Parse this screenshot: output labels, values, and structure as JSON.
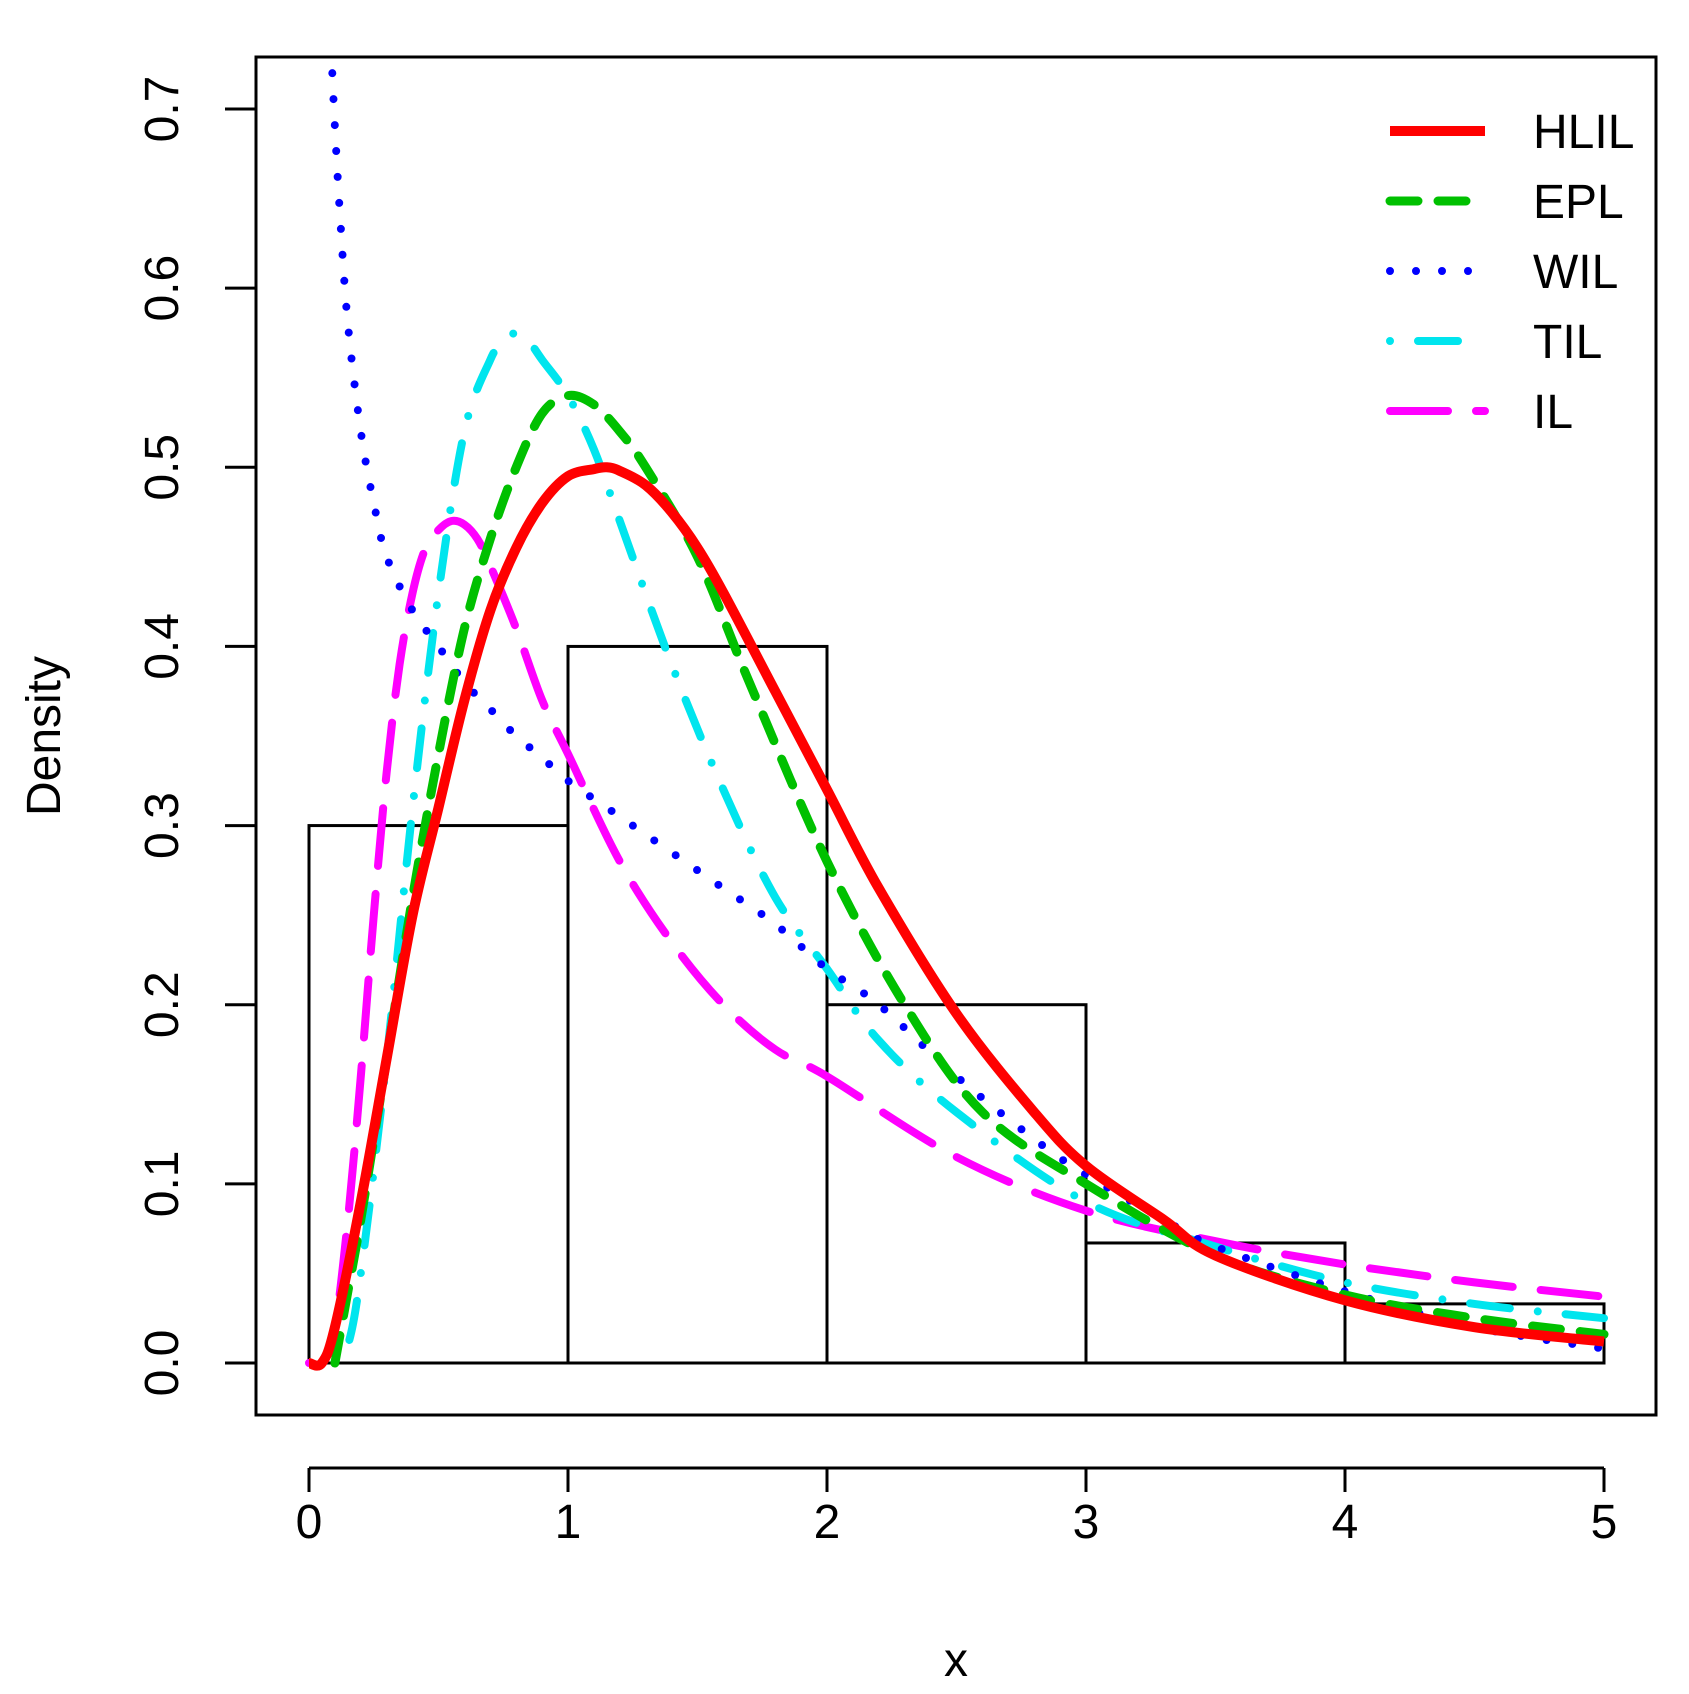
{
  "chart_data": {
    "type": "histogram-with-density-curves",
    "title": "",
    "xlabel": "x",
    "ylabel": "Density",
    "xlim": [
      0,
      5
    ],
    "ylim": [
      0,
      0.7
    ],
    "x_ticks": [
      "0",
      "1",
      "2",
      "3",
      "4",
      "5"
    ],
    "y_ticks": [
      "0.0",
      "0.1",
      "0.2",
      "0.3",
      "0.4",
      "0.5",
      "0.6",
      "0.7"
    ],
    "histogram": {
      "breaks": [
        0,
        1,
        2,
        3,
        4,
        5
      ],
      "densities": [
        0.3,
        0.4,
        0.2,
        0.067,
        0.033
      ]
    },
    "legend_position": "top-right",
    "series": [
      {
        "name": "HLIL",
        "color": "#ff0000",
        "style": "solid",
        "x": [
          0,
          0.05,
          0.1,
          0.2,
          0.3,
          0.4,
          0.5,
          0.6,
          0.7,
          0.8,
          0.9,
          1.0,
          1.1,
          1.15,
          1.2,
          1.3,
          1.4,
          1.5,
          1.6,
          1.8,
          2.0,
          2.2,
          2.5,
          2.8,
          3.0,
          3.3,
          3.5,
          4.0,
          4.5,
          5.0
        ],
        "y": [
          0,
          0.0,
          0.02,
          0.09,
          0.17,
          0.25,
          0.31,
          0.37,
          0.42,
          0.455,
          0.48,
          0.495,
          0.499,
          0.5,
          0.498,
          0.49,
          0.475,
          0.455,
          0.43,
          0.375,
          0.32,
          0.265,
          0.195,
          0.14,
          0.11,
          0.08,
          0.06,
          0.035,
          0.02,
          0.012
        ]
      },
      {
        "name": "EPL",
        "color": "#00c000",
        "style": "dashed",
        "x": [
          0.1,
          0.15,
          0.2,
          0.3,
          0.4,
          0.5,
          0.6,
          0.7,
          0.8,
          0.9,
          1.0,
          1.1,
          1.2,
          1.3,
          1.5,
          1.7,
          2.0,
          2.3,
          2.6,
          3.0,
          3.5,
          4.0,
          4.5,
          5.0
        ],
        "y": [
          0.0,
          0.04,
          0.08,
          0.17,
          0.26,
          0.34,
          0.41,
          0.46,
          0.5,
          0.53,
          0.54,
          0.535,
          0.52,
          0.5,
          0.45,
          0.38,
          0.28,
          0.2,
          0.14,
          0.1,
          0.06,
          0.038,
          0.025,
          0.016
        ]
      },
      {
        "name": "WIL",
        "color": "#0000ff",
        "style": "dotted",
        "x": [
          0.09,
          0.1,
          0.12,
          0.15,
          0.2,
          0.25,
          0.3,
          0.4,
          0.5,
          0.6,
          0.7,
          0.8,
          0.9,
          1.0,
          1.2,
          1.4,
          1.6,
          1.8,
          2.0,
          2.2,
          2.5,
          2.8,
          3.0,
          3.3,
          3.5,
          4.0,
          4.5,
          5.0
        ],
        "y": [
          0.72,
          0.69,
          0.64,
          0.58,
          0.52,
          0.48,
          0.45,
          0.42,
          0.4,
          0.38,
          0.365,
          0.35,
          0.338,
          0.325,
          0.305,
          0.285,
          0.265,
          0.245,
          0.22,
          0.2,
          0.16,
          0.125,
          0.105,
          0.08,
          0.065,
          0.04,
          0.02,
          0.008
        ]
      },
      {
        "name": "TIL",
        "color": "#00e5ee",
        "style": "dotdash",
        "x": [
          0.1,
          0.15,
          0.2,
          0.3,
          0.4,
          0.5,
          0.6,
          0.7,
          0.75,
          0.8,
          0.85,
          0.9,
          1.0,
          1.1,
          1.2,
          1.4,
          1.6,
          1.8,
          2.0,
          2.2,
          2.5,
          3.0,
          3.5,
          4.0,
          4.5,
          5.0
        ],
        "y": [
          0.0,
          0.01,
          0.05,
          0.17,
          0.31,
          0.43,
          0.52,
          0.56,
          0.57,
          0.575,
          0.57,
          0.56,
          0.54,
          0.51,
          0.47,
          0.39,
          0.32,
          0.26,
          0.22,
          0.18,
          0.14,
          0.09,
          0.065,
          0.045,
          0.033,
          0.025
        ]
      },
      {
        "name": "IL",
        "color": "#ff00ff",
        "style": "longdash",
        "x": [
          0,
          0.05,
          0.1,
          0.15,
          0.2,
          0.25,
          0.3,
          0.35,
          0.4,
          0.45,
          0.5,
          0.55,
          0.6,
          0.65,
          0.7,
          0.8,
          0.9,
          1.0,
          1.2,
          1.4,
          1.6,
          1.8,
          2.0,
          2.5,
          3.0,
          3.5,
          4.0,
          4.5,
          5.0
        ],
        "y": [
          0,
          0.0,
          0.02,
          0.08,
          0.16,
          0.25,
          0.33,
          0.39,
          0.43,
          0.455,
          0.465,
          0.47,
          0.468,
          0.46,
          0.445,
          0.41,
          0.37,
          0.34,
          0.28,
          0.235,
          0.2,
          0.175,
          0.16,
          0.115,
          0.085,
          0.068,
          0.055,
          0.045,
          0.037
        ]
      }
    ]
  }
}
